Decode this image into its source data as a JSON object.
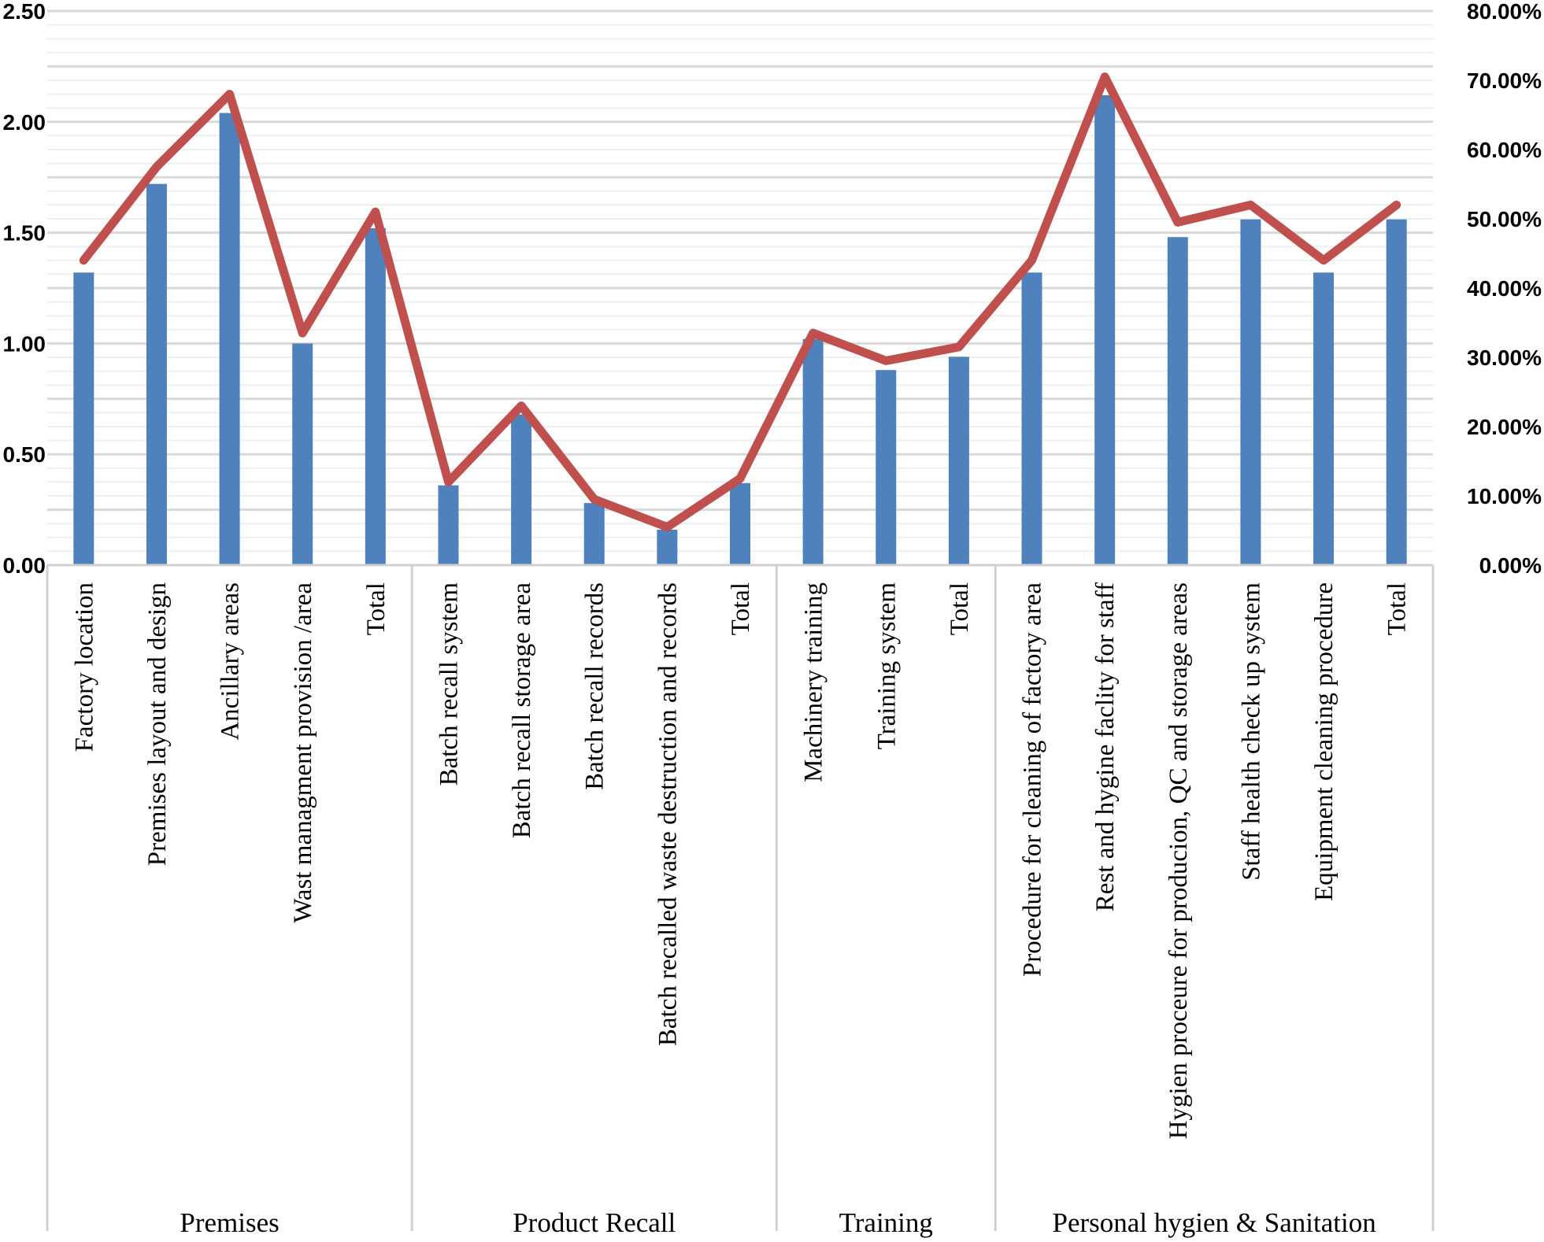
{
  "chart_data": {
    "type": "bar+line",
    "categories": [
      "Factory location",
      "Premises layout and design",
      "Ancillary areas",
      "Wast managment provision /area",
      "Total",
      "Batch recall system",
      "Batch recall storage area",
      "Batch recall records",
      "Batch recalled waste destruction and records",
      "Total",
      "Machinery training",
      "Training system",
      "Total",
      "Procedure for cleaning of factory area",
      "Rest and hygine faclity for staff",
      "Hygien proceure for producion, QC and storage areas",
      "Staff health check up system",
      "Equipment cleaning procedure",
      "Total"
    ],
    "groups": [
      {
        "label": "Premises",
        "start": 0,
        "end": 4
      },
      {
        "label": "Product Recall",
        "start": 5,
        "end": 9
      },
      {
        "label": "Training",
        "start": 10,
        "end": 12
      },
      {
        "label": "Personal hygien & Sanitation",
        "start": 13,
        "end": 18
      }
    ],
    "series": [
      {
        "type": "bar",
        "axis": "left",
        "color": "#4f81bd",
        "values": [
          1.32,
          1.72,
          2.04,
          1.0,
          1.52,
          0.36,
          0.68,
          0.28,
          0.16,
          0.37,
          1.02,
          0.88,
          0.94,
          1.32,
          2.12,
          1.48,
          1.56,
          1.32,
          1.56
        ]
      },
      {
        "type": "line",
        "axis": "right",
        "color": "#c0504d",
        "values": [
          44.0,
          57.5,
          68.0,
          33.5,
          51.0,
          12.0,
          23.0,
          9.5,
          5.5,
          12.5,
          33.5,
          29.5,
          31.5,
          44.0,
          70.5,
          49.5,
          52.0,
          44.0,
          52.0
        ]
      }
    ],
    "y_left": {
      "min": 0,
      "max": 2.5,
      "ticks": [
        "0.00",
        "0.50",
        "1.00",
        "1.50",
        "2.00",
        "2.50"
      ]
    },
    "y_right": {
      "min": 0,
      "max": 80,
      "ticks": [
        "0.00%",
        "10.00%",
        "20.00%",
        "30.00%",
        "40.00%",
        "50.00%",
        "60.00%",
        "70.00%",
        "80.00%"
      ]
    },
    "grid": "major and minor horizontal",
    "legend": "none"
  }
}
